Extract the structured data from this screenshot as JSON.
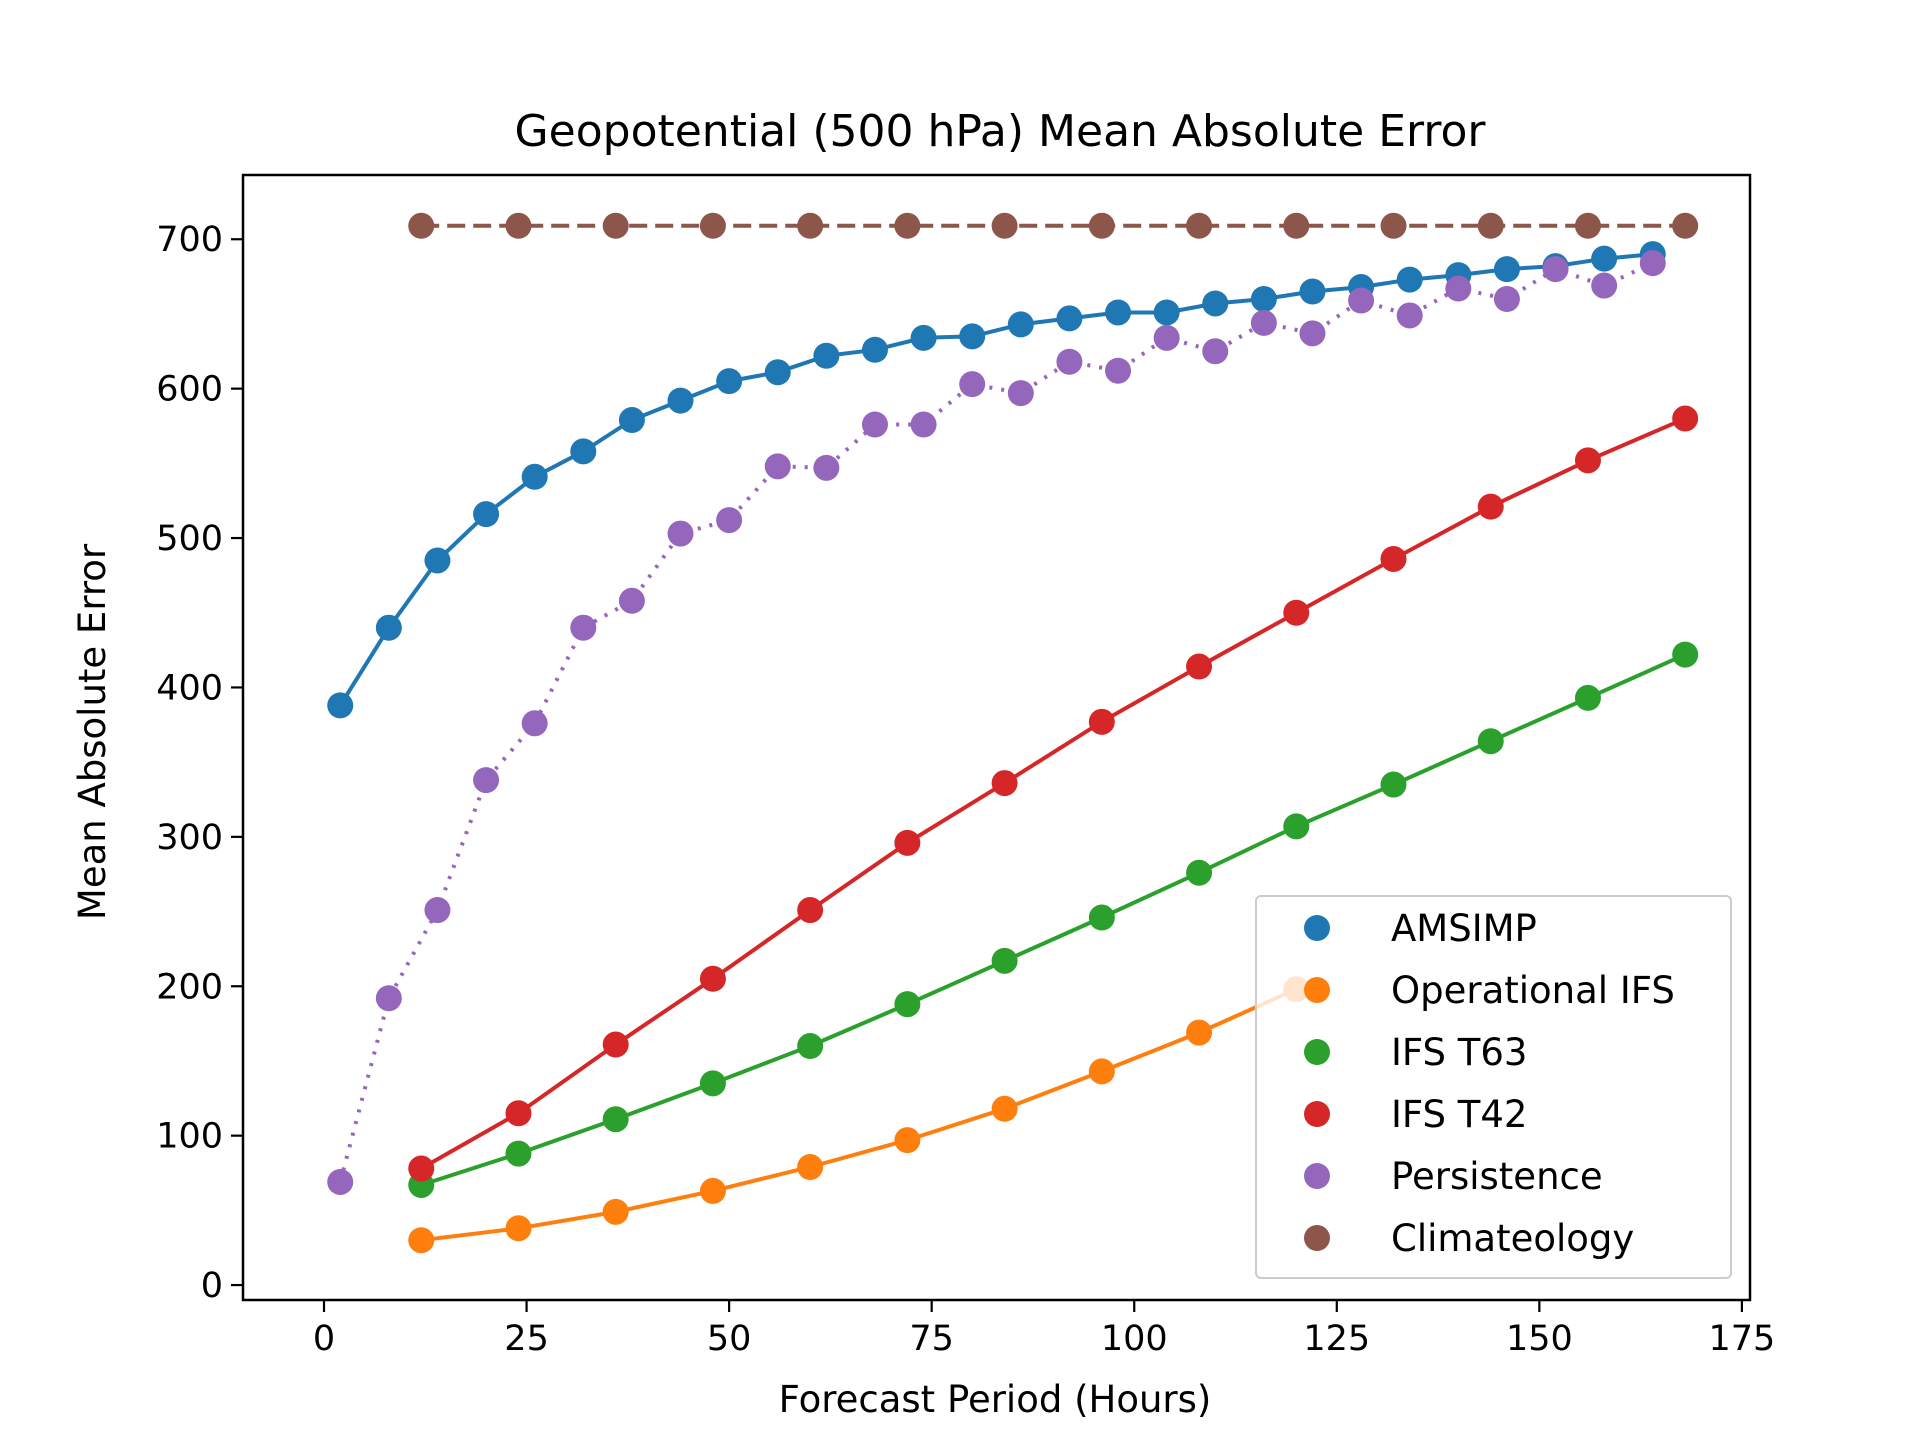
{
  "chart_data": {
    "type": "line",
    "title": "Geopotential (500 hPa) Mean Absolute Error",
    "xlabel": "Forecast Period (Hours)",
    "ylabel": "Mean Absolute Error",
    "xlim": [
      -10,
      176
    ],
    "ylim": [
      -10,
      743
    ],
    "xticks": [
      0,
      25,
      50,
      75,
      100,
      125,
      150,
      175
    ],
    "yticks": [
      0,
      100,
      200,
      300,
      400,
      500,
      600,
      700
    ],
    "grid": false,
    "legend_position": "lower-right",
    "series": [
      {
        "name": "AMSIMP",
        "color": "#1f77b4",
        "linestyle": "solid",
        "x": [
          2,
          8,
          14,
          20,
          26,
          32,
          38,
          44,
          50,
          56,
          62,
          68,
          74,
          80,
          86,
          92,
          98,
          104,
          110,
          116,
          122,
          128,
          134,
          140,
          146,
          152,
          158,
          164
        ],
        "y": [
          388,
          440,
          485,
          516,
          541,
          558,
          579,
          592,
          605,
          611,
          622,
          626,
          634,
          635,
          643,
          647,
          651,
          651,
          657,
          660,
          665,
          668,
          673,
          676,
          680,
          682,
          687,
          690
        ]
      },
      {
        "name": "Operational IFS",
        "color": "#ff7f0e",
        "linestyle": "solid",
        "x": [
          12,
          24,
          36,
          48,
          60,
          72,
          84,
          96,
          108,
          120
        ],
        "y": [
          30,
          38,
          49,
          63,
          79,
          97,
          118,
          143,
          169,
          198
        ]
      },
      {
        "name": "IFS T63",
        "color": "#2ca02c",
        "linestyle": "solid",
        "x": [
          12,
          24,
          36,
          48,
          60,
          72,
          84,
          96,
          108,
          120,
          132,
          144,
          156,
          168
        ],
        "y": [
          67,
          88,
          111,
          135,
          160,
          188,
          217,
          246,
          276,
          307,
          335,
          364,
          393,
          422
        ]
      },
      {
        "name": "IFS T42",
        "color": "#d62728",
        "linestyle": "solid",
        "x": [
          12,
          24,
          36,
          48,
          60,
          72,
          84,
          96,
          108,
          120,
          132,
          144,
          156,
          168
        ],
        "y": [
          78,
          115,
          161,
          205,
          251,
          296,
          336,
          377,
          414,
          450,
          486,
          521,
          552,
          580
        ]
      },
      {
        "name": "Persistence",
        "color": "#9467bd",
        "linestyle": "dotted",
        "x": [
          2,
          8,
          14,
          20,
          26,
          32,
          38,
          44,
          50,
          56,
          62,
          68,
          74,
          80,
          86,
          92,
          98,
          104,
          110,
          116,
          122,
          128,
          134,
          140,
          146,
          152,
          158,
          164
        ],
        "y": [
          69,
          192,
          251,
          338,
          376,
          440,
          458,
          503,
          512,
          548,
          547,
          576,
          576,
          603,
          597,
          618,
          612,
          634,
          625,
          644,
          637,
          659,
          649,
          667,
          660,
          680,
          669,
          684
        ]
      },
      {
        "name": "Climateology",
        "color": "#8c564b",
        "linestyle": "dashed",
        "x": [
          12,
          24,
          36,
          48,
          60,
          72,
          84,
          96,
          108,
          120,
          132,
          144,
          156,
          168
        ],
        "y": [
          709,
          709,
          709,
          709,
          709,
          709,
          709,
          709,
          709,
          709,
          709,
          709,
          709,
          709
        ]
      }
    ]
  }
}
